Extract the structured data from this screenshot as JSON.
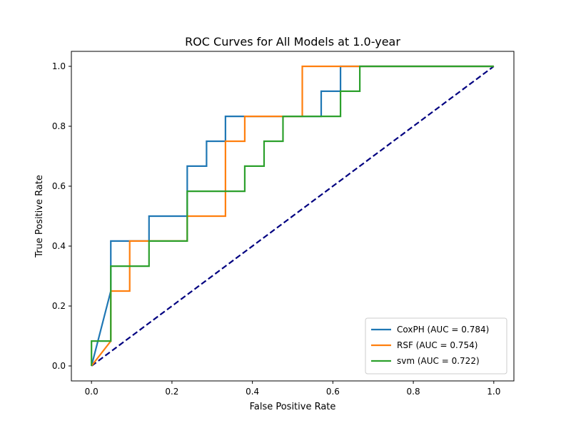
{
  "chart_data": {
    "type": "line",
    "title": "ROC Curves for All Models at 1.0-year",
    "xlabel": "False Positive Rate",
    "ylabel": "True Positive Rate",
    "xlim": [
      -0.05,
      1.05
    ],
    "ylim": [
      -0.05,
      1.05
    ],
    "xticks": [
      0.0,
      0.2,
      0.4,
      0.6,
      0.8,
      1.0
    ],
    "yticks": [
      0.0,
      0.2,
      0.4,
      0.6,
      0.8,
      1.0
    ],
    "xtick_labels": [
      "0.0",
      "0.2",
      "0.4",
      "0.6",
      "0.8",
      "1.0"
    ],
    "ytick_labels": [
      "0.0",
      "0.2",
      "0.4",
      "0.6",
      "0.8",
      "1.0"
    ],
    "grid": false,
    "legend_position": "lower-right",
    "series": [
      {
        "name": "CoxPH (AUC = 0.784)",
        "color": "#1f77b4",
        "points": [
          [
            0,
            0
          ],
          [
            0.048,
            0.25
          ],
          [
            0.048,
            0.417
          ],
          [
            0.143,
            0.417
          ],
          [
            0.143,
            0.5
          ],
          [
            0.238,
            0.5
          ],
          [
            0.238,
            0.667
          ],
          [
            0.286,
            0.667
          ],
          [
            0.286,
            0.75
          ],
          [
            0.333,
            0.75
          ],
          [
            0.333,
            0.833
          ],
          [
            0.571,
            0.833
          ],
          [
            0.571,
            0.917
          ],
          [
            0.619,
            0.917
          ],
          [
            0.619,
            1.0
          ],
          [
            1.0,
            1.0
          ]
        ]
      },
      {
        "name": "RSF (AUC = 0.754)",
        "color": "#ff7f0e",
        "points": [
          [
            0,
            0
          ],
          [
            0.048,
            0.083
          ],
          [
            0.048,
            0.25
          ],
          [
            0.095,
            0.25
          ],
          [
            0.095,
            0.417
          ],
          [
            0.238,
            0.417
          ],
          [
            0.238,
            0.5
          ],
          [
            0.333,
            0.5
          ],
          [
            0.333,
            0.75
          ],
          [
            0.381,
            0.75
          ],
          [
            0.381,
            0.833
          ],
          [
            0.524,
            0.833
          ],
          [
            0.524,
            1.0
          ],
          [
            1.0,
            1.0
          ]
        ]
      },
      {
        "name": "svm (AUC = 0.722)",
        "color": "#2ca02c",
        "points": [
          [
            0,
            0
          ],
          [
            0,
            0.083
          ],
          [
            0.048,
            0.083
          ],
          [
            0.048,
            0.333
          ],
          [
            0.143,
            0.333
          ],
          [
            0.143,
            0.417
          ],
          [
            0.238,
            0.417
          ],
          [
            0.238,
            0.583
          ],
          [
            0.381,
            0.583
          ],
          [
            0.381,
            0.667
          ],
          [
            0.429,
            0.667
          ],
          [
            0.429,
            0.75
          ],
          [
            0.476,
            0.75
          ],
          [
            0.476,
            0.833
          ],
          [
            0.619,
            0.833
          ],
          [
            0.619,
            0.917
          ],
          [
            0.667,
            0.917
          ],
          [
            0.667,
            1.0
          ],
          [
            1.0,
            1.0
          ]
        ]
      }
    ],
    "reference_line": {
      "color": "#000080",
      "style": "dashed",
      "points": [
        [
          0,
          0
        ],
        [
          1,
          1
        ]
      ]
    }
  }
}
